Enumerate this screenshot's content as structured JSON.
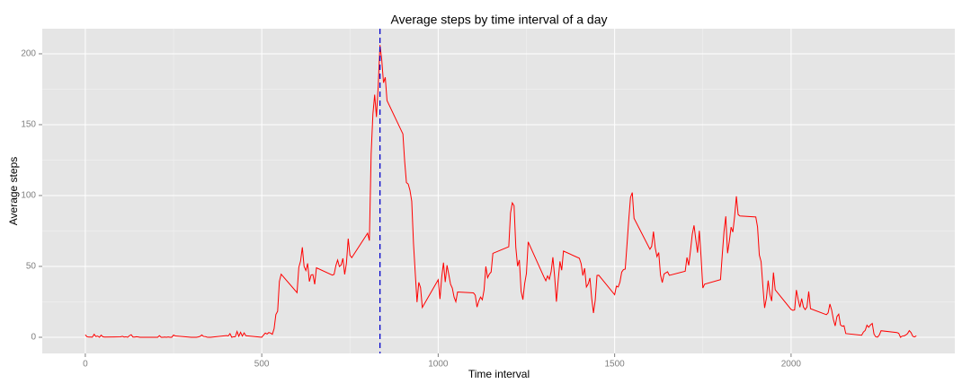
{
  "chart_data": {
    "type": "line",
    "title": "Average steps by time interval of a day",
    "x_label": "Time interval",
    "y_label": "Average steps",
    "x": [
      0,
      5,
      10,
      15,
      20,
      25,
      30,
      35,
      40,
      45,
      50,
      55,
      100,
      105,
      110,
      115,
      120,
      125,
      130,
      135,
      140,
      145,
      150,
      155,
      200,
      205,
      210,
      215,
      220,
      225,
      230,
      235,
      240,
      245,
      250,
      255,
      300,
      305,
      310,
      315,
      320,
      325,
      330,
      335,
      340,
      345,
      350,
      355,
      400,
      405,
      410,
      415,
      420,
      425,
      430,
      435,
      440,
      445,
      450,
      455,
      500,
      505,
      510,
      515,
      520,
      525,
      530,
      535,
      540,
      545,
      550,
      555,
      600,
      605,
      610,
      615,
      620,
      625,
      630,
      635,
      640,
      645,
      650,
      655,
      700,
      705,
      710,
      715,
      720,
      725,
      730,
      735,
      740,
      745,
      750,
      755,
      800,
      805,
      810,
      815,
      820,
      825,
      830,
      835,
      840,
      845,
      850,
      855,
      900,
      905,
      910,
      915,
      920,
      925,
      930,
      935,
      940,
      945,
      950,
      955,
      1000,
      1005,
      1010,
      1015,
      1020,
      1025,
      1030,
      1035,
      1040,
      1045,
      1050,
      1055,
      1100,
      1105,
      1110,
      1115,
      1120,
      1125,
      1130,
      1135,
      1140,
      1145,
      1150,
      1155,
      1200,
      1205,
      1210,
      1215,
      1220,
      1225,
      1230,
      1235,
      1240,
      1245,
      1250,
      1255,
      1300,
      1305,
      1310,
      1315,
      1320,
      1325,
      1330,
      1335,
      1340,
      1345,
      1350,
      1355,
      1400,
      1405,
      1410,
      1415,
      1420,
      1425,
      1430,
      1435,
      1440,
      1445,
      1450,
      1455,
      1500,
      1505,
      1510,
      1515,
      1520,
      1525,
      1530,
      1535,
      1540,
      1545,
      1550,
      1555,
      1600,
      1605,
      1610,
      1615,
      1620,
      1625,
      1630,
      1635,
      1640,
      1645,
      1650,
      1655,
      1700,
      1705,
      1710,
      1715,
      1720,
      1725,
      1730,
      1735,
      1740,
      1745,
      1750,
      1755,
      1800,
      1805,
      1810,
      1815,
      1820,
      1825,
      1830,
      1835,
      1840,
      1845,
      1850,
      1855,
      1900,
      1905,
      1910,
      1915,
      1920,
      1925,
      1930,
      1935,
      1940,
      1945,
      1950,
      1955,
      2000,
      2005,
      2010,
      2015,
      2020,
      2025,
      2030,
      2035,
      2040,
      2045,
      2050,
      2055,
      2100,
      2105,
      2110,
      2115,
      2120,
      2125,
      2130,
      2135,
      2140,
      2145,
      2150,
      2155,
      2200,
      2205,
      2210,
      2215,
      2220,
      2225,
      2230,
      2235,
      2240,
      2245,
      2250,
      2255,
      2300,
      2305,
      2310,
      2315,
      2320,
      2325,
      2330,
      2335,
      2340,
      2345,
      2350,
      2355
    ],
    "values": [
      1.72,
      0.34,
      0.13,
      0.15,
      0.08,
      2.09,
      0.53,
      0.87,
      0,
      1.47,
      0.3,
      0.13,
      0.32,
      0.68,
      0.15,
      0.34,
      0,
      1.11,
      1.83,
      0.17,
      0.17,
      0.38,
      0.26,
      0,
      0,
      0,
      1.13,
      0,
      0,
      0.13,
      0,
      0.23,
      0,
      0,
      1.55,
      0.94,
      0,
      0,
      0,
      0,
      0.21,
      0.62,
      1.62,
      0.58,
      0.49,
      0.08,
      0,
      0,
      1.19,
      0.94,
      2.57,
      0,
      0.34,
      0.36,
      4.11,
      0.66,
      3.49,
      0.83,
      3.11,
      1.11,
      0,
      1.57,
      3,
      2.25,
      3.32,
      2.96,
      2.09,
      6.06,
      16.02,
      18.34,
      39.45,
      44.49,
      31.49,
      49.26,
      53.77,
      63.45,
      49.96,
      47.08,
      52.15,
      39.34,
      44.02,
      44.17,
      37.36,
      49.04,
      43.81,
      44.38,
      50.51,
      54.51,
      49.92,
      50.98,
      55.68,
      44.32,
      52.26,
      69.55,
      57.85,
      56.15,
      73.38,
      68.21,
      129.43,
      157.53,
      171.15,
      155.4,
      177.3,
      206.17,
      195.92,
      179.57,
      183.4,
      167.02,
      143.45,
      124.04,
      109.11,
      108.11,
      103.72,
      95.97,
      66.21,
      45.23,
      24.79,
      38.75,
      34.98,
      21.06,
      40.57,
      26.98,
      42.42,
      52.66,
      38.92,
      50.79,
      44.28,
      37.42,
      34.7,
      28.34,
      25.09,
      31.94,
      31.36,
      29.68,
      21.32,
      25.55,
      28.38,
      26.47,
      33.43,
      49.98,
      42.04,
      44.6,
      46.04,
      59.19,
      63.87,
      87.7,
      94.85,
      92.77,
      63.4,
      50.17,
      54.47,
      32.42,
      26.53,
      37.74,
      45.06,
      67.28,
      42.34,
      39.88,
      43.26,
      40.98,
      46.25,
      56.43,
      42.75,
      25.13,
      39.97,
      53.55,
      47.32,
      60.81,
      55.75,
      51.96,
      43.58,
      48.7,
      35.47,
      37.55,
      41.85,
      27.51,
      17.11,
      26.08,
      43.62,
      43.77,
      30.02,
      36.08,
      35.49,
      38.85,
      45.96,
      47.75,
      48.13,
      65.32,
      82.91,
      98.66,
      102.11,
      83.96,
      62.13,
      64.13,
      74.55,
      63.17,
      56.91,
      59.77,
      43.87,
      38.57,
      44.66,
      45.45,
      46.21,
      43.68,
      46.62,
      56.3,
      50.72,
      61.23,
      72.72,
      78.94,
      68.94,
      59.66,
      75.09,
      56.51,
      34.77,
      37.45,
      40.68,
      58.02,
      74.7,
      85.32,
      59.26,
      67.77,
      77.7,
      74.25,
      85.34,
      99.45,
      86.58,
      85.6,
      84.87,
      77.83,
      58.04,
      53.36,
      36.32,
      20.72,
      27.4,
      40.02,
      30.21,
      25.55,
      45.66,
      33.53,
      19.62,
      19.02,
      19.34,
      33.34,
      26.81,
      21.17,
      27.3,
      21.34,
      19.55,
      21.32,
      32.3,
      20.15,
      15.94,
      17.23,
      23.45,
      19.25,
      12.45,
      8.02,
      14.66,
      16.3,
      8.68,
      7.79,
      8.13,
      2.62,
      1.45,
      3.68,
      4.81,
      8.51,
      7.08,
      8.7,
      9.75,
      2.21,
      0.32,
      0.11,
      1.6,
      4.6,
      3.3,
      2.85,
      0,
      0.83,
      0.96,
      1.58,
      2.6,
      4.7,
      3.3,
      0.64,
      0.23,
      1.08
    ],
    "color": "#ff0000",
    "reference_line": {
      "x": 835,
      "color": "#0000cc"
    },
    "xlim": [
      -122,
      2464
    ],
    "ylim": [
      -11.4,
      217.7
    ],
    "xticks": [
      0,
      500,
      1000,
      1500,
      2000
    ],
    "yticks": [
      0,
      50,
      100,
      150,
      200
    ],
    "grid": true
  }
}
